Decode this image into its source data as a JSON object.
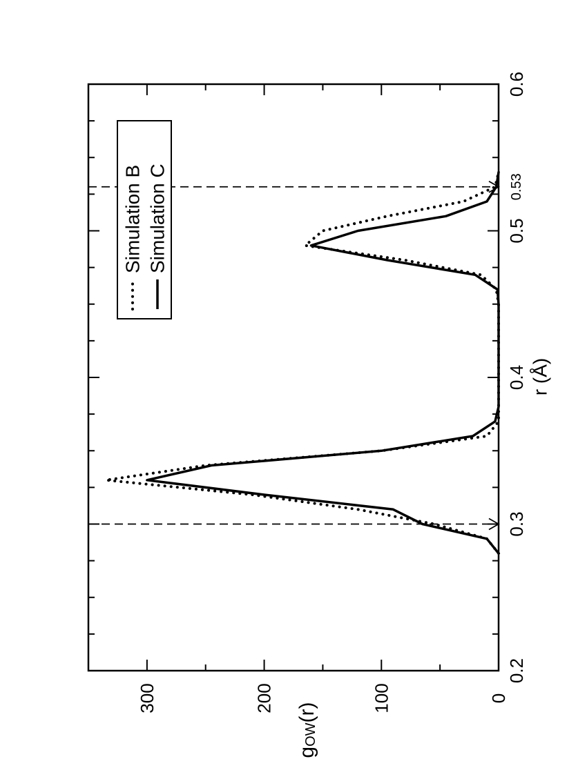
{
  "chart_data": {
    "type": "line",
    "orientation": "rotated-90-ccw",
    "title": "",
    "xlabel": "r (Å)",
    "ylabel": "g",
    "ylabel_subscript": "OW",
    "ylabel_suffix": "(r)",
    "xlim": [
      0.2,
      0.6
    ],
    "ylim": [
      0,
      350
    ],
    "x_ticks": [
      "0.2",
      "0.3",
      "0.4",
      "0.5",
      "0.6"
    ],
    "y_ticks": [
      "0",
      "100",
      "200",
      "300"
    ],
    "annotations": [
      {
        "x": 0.3,
        "label": "0.3",
        "style": "dashed-vertical-line-with-arrow"
      },
      {
        "x": 0.53,
        "label": "0.53",
        "style": "dashed-vertical-line-with-arrow"
      }
    ],
    "legend": {
      "placement": "top-left",
      "entries": [
        "Simulation B",
        "Simulation C"
      ]
    },
    "grid": false,
    "series": [
      {
        "name": "Simulation B",
        "style": "dotted",
        "x": [
          0.28,
          0.29,
          0.3,
          0.31,
          0.32,
          0.33,
          0.34,
          0.35,
          0.36,
          0.37,
          0.38,
          0.45,
          0.46,
          0.47,
          0.48,
          0.49,
          0.5,
          0.51,
          0.52,
          0.53,
          0.54
        ],
        "y": [
          0,
          10,
          55,
          120,
          210,
          335,
          250,
          100,
          10,
          0,
          0,
          0,
          2,
          15,
          80,
          165,
          150,
          95,
          30,
          3,
          0
        ]
      },
      {
        "name": "Simulation C",
        "style": "solid",
        "x": [
          0.28,
          0.29,
          0.3,
          0.31,
          0.32,
          0.33,
          0.34,
          0.35,
          0.36,
          0.37,
          0.38,
          0.45,
          0.46,
          0.47,
          0.48,
          0.49,
          0.5,
          0.51,
          0.52,
          0.53,
          0.54
        ],
        "y": [
          0,
          10,
          65,
          90,
          200,
          300,
          245,
          100,
          22,
          3,
          0,
          0,
          1,
          20,
          95,
          160,
          120,
          45,
          10,
          2,
          0
        ]
      }
    ]
  }
}
